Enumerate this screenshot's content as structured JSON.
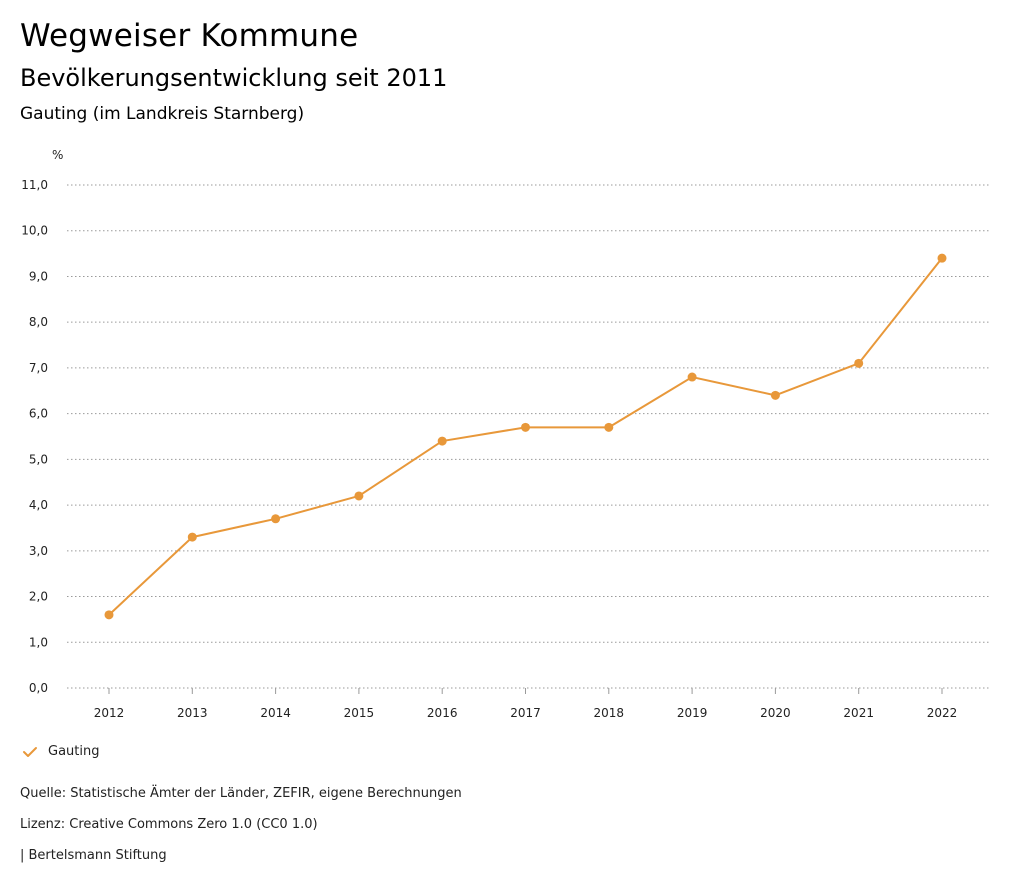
{
  "header": {
    "title": "Wegweiser Kommune",
    "subtitle": "Bevölkerungsentwicklung seit 2011",
    "region": "Gauting (im Landkreis Starnberg)"
  },
  "chart_data": {
    "type": "line",
    "ylabel": "%",
    "xlabel": "",
    "ylim": [
      0,
      11
    ],
    "yticks": [
      0,
      1,
      2,
      3,
      4,
      5,
      6,
      7,
      8,
      9,
      10,
      11
    ],
    "ytick_labels": [
      "0,0",
      "1,0",
      "2,0",
      "3,0",
      "4,0",
      "5,0",
      "6,0",
      "7,0",
      "8,0",
      "9,0",
      "10,0",
      "11,0"
    ],
    "grid": true,
    "categories": [
      "2012",
      "2013",
      "2014",
      "2015",
      "2016",
      "2017",
      "2018",
      "2019",
      "2020",
      "2021",
      "2022"
    ],
    "series": [
      {
        "name": "Gauting",
        "color": "#e8983a",
        "values": [
          1.6,
          3.3,
          3.7,
          4.2,
          5.4,
          5.7,
          5.7,
          6.8,
          6.4,
          7.1,
          9.4
        ]
      }
    ]
  },
  "legend": {
    "label": "Gauting",
    "icon": "check-icon",
    "color": "#e8983a"
  },
  "footer": {
    "source": "Quelle: Statistische Ämter der Länder, ZEFIR, eigene Berechnungen",
    "license": "Lizenz: Creative Commons Zero 1.0 (CC0 1.0)",
    "publisher": "| Bertelsmann Stiftung"
  }
}
